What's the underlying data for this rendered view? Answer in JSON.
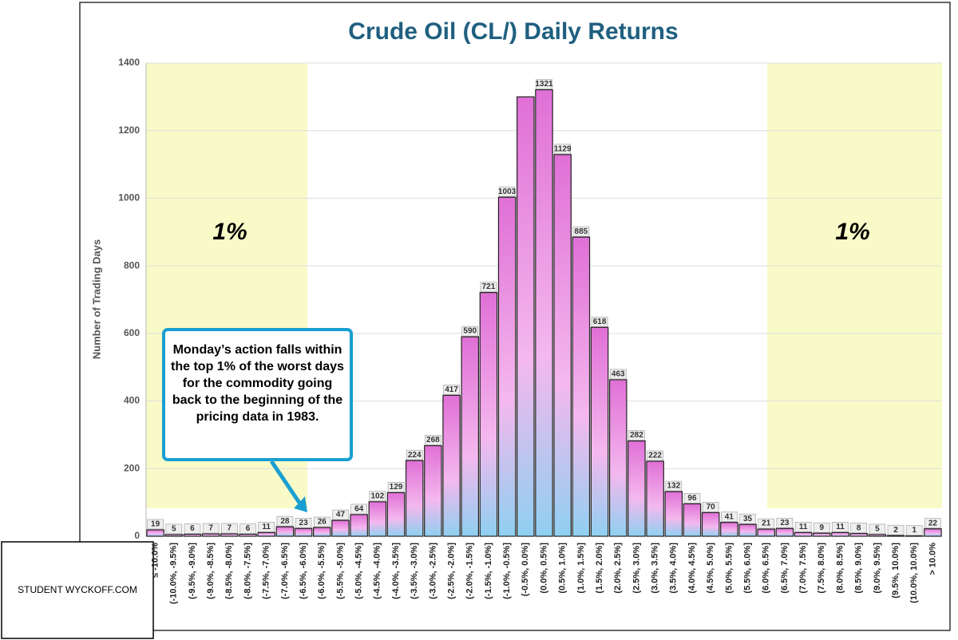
{
  "chart_data": {
    "type": "bar",
    "title": "Crude Oil (CL/) Daily Returns",
    "y_label": "Number of Trading Days",
    "categories": [
      "≤ -10.0%",
      "(-10.0%, -9.5%]",
      "(-9.5%, -9.0%]",
      "(-9.0%, -8.5%]",
      "(-8.5%, -8.0%]",
      "(-8.0%, -7.5%]",
      "(-7.5%, -7.0%]",
      "(-7.0%, -6.5%]",
      "(-6.5%, -6.0%]",
      "(-6.0%, -5.5%]",
      "(-5.5%, -5.0%]",
      "(-5.0%, -4.5%]",
      "(-4.5%, -4.0%]",
      "(-4.0%, -3.5%]",
      "(-3.5%, -3.0%]",
      "(-3.0%, -2.5%]",
      "(-2.5%, -2.0%]",
      "(-2.0%, -1.5%]",
      "(-1.5%, -1.0%]",
      "(-1.0%, -0.5%]",
      "(-0.5%, 0.0%]",
      "(0.0%, 0.5%]",
      "(0.5%, 1.0%]",
      "(1.0%, 1.5%]",
      "(1.5%, 2.0%]",
      "(2.0%, 2.5%]",
      "(2.5%, 3.0%]",
      "(3.0%, 3.5%]",
      "(3.5%, 4.0%]",
      "(4.0%, 4.5%]",
      "(4.5%, 5.0%]",
      "(5.0%, 5.5%]",
      "(5.5%, 6.0%]",
      "(6.0%, 6.5%]",
      "(6.5%, 7.0%]",
      "(7.0%, 7.5%]",
      "(7.5%, 8.0%]",
      "(8.0%, 8.5%]",
      "(8.5%, 9.0%]",
      "(9.0%, 9.5%]",
      "(9.5%, 10.0%]",
      "(10.0%, 10.0%]",
      "> 10.0%"
    ],
    "values": [
      19,
      5,
      6,
      7,
      7,
      6,
      11,
      28,
      23,
      26,
      47,
      64,
      102,
      129,
      224,
      268,
      417,
      590,
      721,
      1003,
      1300,
      1321,
      1129,
      885,
      618,
      463,
      282,
      222,
      132,
      96,
      70,
      41,
      35,
      21,
      23,
      11,
      9,
      11,
      8,
      5,
      2,
      1,
      22
    ],
    "value_labels": [
      19,
      5,
      6,
      7,
      7,
      6,
      11,
      28,
      23,
      26,
      47,
      64,
      102,
      129,
      224,
      268,
      417,
      590,
      721,
      1003,
      null,
      1321,
      1129,
      885,
      618,
      463,
      282,
      222,
      132,
      96,
      70,
      41,
      35,
      21,
      23,
      11,
      9,
      11,
      8,
      5,
      2,
      1,
      22
    ],
    "color": "#e680d8",
    "ylim": [
      0,
      1400
    ],
    "yticks": [
      0,
      200,
      400,
      600,
      800,
      1000,
      1200,
      1400
    ],
    "grid": true,
    "annotations": [
      "1%",
      "1%",
      "Monday’s action falls within the top 1% of the worst days for the commodity going back to the beginning of the pricing data in 1983."
    ],
    "watermark": "STUDENT WYCKOFF.COM"
  }
}
